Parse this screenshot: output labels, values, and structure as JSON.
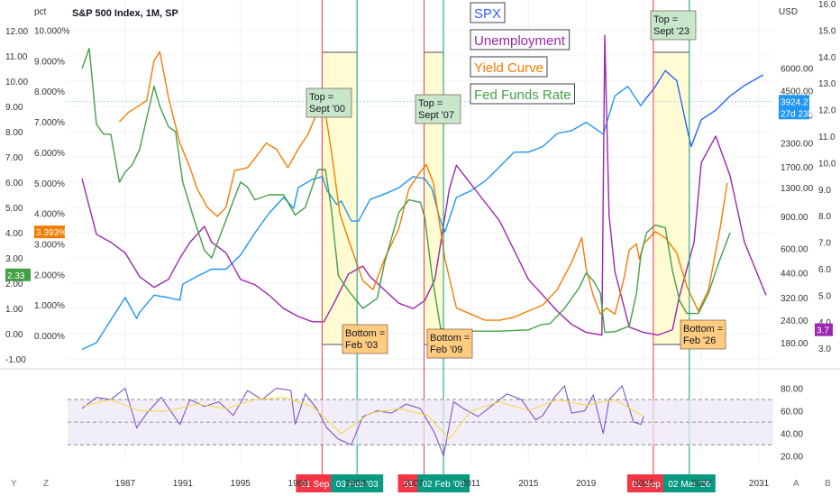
{
  "title": "S&P 500 Index, 1M, SP",
  "left_unit": "pct",
  "right_unit": "USD",
  "corner_left": [
    "Y",
    "Z"
  ],
  "corner_right": [
    "A",
    "B"
  ],
  "chart_data": [
    {
      "type": "line",
      "name": "main",
      "x_ticks": [
        "1987",
        "1991",
        "1995",
        "1999",
        "2003",
        "2007",
        "2011",
        "2015",
        "2019",
        "2023",
        "2027",
        "2031"
      ],
      "xlim": [
        1983,
        2032
      ],
      "left_pct_axis": {
        "ticks": [
          "10.000%",
          "9.000%",
          "8.000%",
          "7.000%",
          "6.000%",
          "5.000%",
          "4.000%",
          "3.000%",
          "2.000%",
          "1.000%",
          "0.000%"
        ],
        "range": [
          0,
          10
        ]
      },
      "left_ff_axis": {
        "ticks": [
          "12.00",
          "11.00",
          "10.00",
          "9.00",
          "8.00",
          "7.00",
          "6.00",
          "5.00",
          "4.00",
          "3.00",
          "2.00",
          "1.00",
          "0.00",
          "-1.00"
        ],
        "range": [
          -1,
          12
        ]
      },
      "right_spx_axis": {
        "ticks": [
          "6000.00",
          "4500.00",
          "3300.00",
          "2300.00",
          "1700.00",
          "1300.00",
          "900.00",
          "600.00",
          "440.00",
          "320.00",
          "240.00",
          "180.00"
        ],
        "scale": "log"
      },
      "right_unemp_axis": {
        "ticks": [
          "16.0",
          "15.0",
          "14.0",
          "13.0",
          "12.0",
          "11.0",
          "10.0",
          "9.0",
          "8.0",
          "7.0",
          "6.0",
          "5.0",
          "4.0",
          "3.0"
        ],
        "range": [
          3,
          16
        ]
      },
      "legend": [
        {
          "name": "SPX",
          "color": "#2962ff"
        },
        {
          "name": "Unemployment",
          "color": "#9c27b0"
        },
        {
          "name": "Yield Curve",
          "color": "#f57c00"
        },
        {
          "name": "Fed Funds Rate",
          "color": "#43a047"
        }
      ],
      "series": [
        {
          "name": "SPX",
          "color": "#2196f3",
          "x": [
            1984,
            1985,
            1986,
            1987,
            1987.8,
            1988,
            1989,
            1990,
            1990.8,
            1991,
            1992,
            1993,
            1994,
            1995,
            1996,
            1997,
            1998,
            1998.7,
            1999,
            2000,
            2000.7,
            2001,
            2001.7,
            2002,
            2002.7,
            2003.2,
            2004,
            2005,
            2006,
            2007,
            2007.8,
            2008.3,
            2008.8,
            2009.2,
            2010,
            2011,
            2012,
            2013,
            2014,
            2015,
            2016,
            2017,
            2018,
            2019,
            2020.2,
            2021,
            2021.9,
            2022.8,
            2023
          ],
          "y": [
            165,
            180,
            240,
            320,
            245,
            265,
            330,
            320,
            310,
            380,
            420,
            460,
            460,
            550,
            730,
            940,
            1150,
            1000,
            1300,
            1450,
            1500,
            1260,
            1050,
            1100,
            850,
            850,
            1120,
            1200,
            1300,
            1500,
            1460,
            1280,
            900,
            740,
            1150,
            1250,
            1420,
            1700,
            2050,
            2050,
            2200,
            2600,
            2700,
            3000,
            2580,
            4200,
            4750,
            3700,
            3925
          ]
        },
        {
          "name": "SPX projection",
          "color": "#2962ff",
          "x": [
            2023,
            2023.7,
            2024.5,
            2025.3,
            2026.0,
            2026.3,
            2027,
            2028,
            2029,
            2030,
            2031.3
          ],
          "y": [
            3925,
            4600,
            5800,
            5100,
            2800,
            2200,
            3100,
            3500,
            4200,
            4800,
            5500
          ]
        },
        {
          "name": "Unemployment",
          "color": "#9c27b0",
          "x": [
            1984,
            1985,
            1986,
            1987,
            1988,
            1989,
            1990,
            1990.8,
            1991.5,
            1992.5,
            1993,
            1994,
            1995,
            1996,
            1997,
            1998,
            1999,
            2000,
            2000.8,
            2001.5,
            2002.5,
            2003.5,
            2004,
            2005,
            2006,
            2007,
            2007.8,
            2008.5,
            2009.5,
            2010,
            2011,
            2012,
            2013,
            2014,
            2015,
            2016,
            2017,
            2018,
            2019,
            2020.1,
            2020.3,
            2020.6,
            2021,
            2022,
            2023,
            2024,
            2025,
            2025.5,
            2026.5,
            2027,
            2028,
            2029,
            2030,
            2031.5
          ],
          "y": [
            9.4,
            7.3,
            7.0,
            6.6,
            5.7,
            5.3,
            5.6,
            6.4,
            7.0,
            7.6,
            7.0,
            6.6,
            5.6,
            5.4,
            5.0,
            4.5,
            4.2,
            4.0,
            4.0,
            4.7,
            5.8,
            6.1,
            5.7,
            5.2,
            4.7,
            4.5,
            4.8,
            5.6,
            9.0,
            9.9,
            9.2,
            8.5,
            7.8,
            6.7,
            5.6,
            5.0,
            4.4,
            3.9,
            3.6,
            3.5,
            14.8,
            8.0,
            5.9,
            3.8,
            3.6,
            3.5,
            3.7,
            5.0,
            7.0,
            10.0,
            11.0,
            9.5,
            7.0,
            5.0
          ]
        },
        {
          "name": "Yield Curve",
          "color": "#f57c00",
          "x": [
            1986.6,
            1987.2,
            1988.5,
            1989,
            1989.4,
            1990,
            1990.8,
            1991.5,
            1992,
            1992.7,
            1993.4,
            1994,
            1994.6,
            1995.5,
            1996,
            1996.8,
            1997.5,
            1998.3,
            1999,
            1999.7,
            2000.5,
            2000.8,
            2001.3,
            2001.9,
            2002.6,
            2003.5,
            2004.2,
            2005,
            2006,
            2006.7,
            2007.4,
            2007.9,
            2008.4,
            2009.2,
            2010,
            2011,
            2012,
            2013,
            2014,
            2015,
            2016,
            2017,
            2018,
            2018.7,
            2019,
            2019.5,
            2020,
            2020.4,
            2021,
            2021.6,
            2022,
            2022.5,
            2022.7,
            2023,
            2023.8,
            2024.5,
            2025.3,
            2026,
            2026.8,
            2027.5,
            2028.3,
            2028.8
          ],
          "y": [
            7.0,
            7.3,
            7.7,
            9.0,
            9.3,
            7.8,
            6.3,
            5.5,
            4.8,
            4.2,
            3.9,
            4.2,
            5.4,
            5.5,
            5.8,
            6.3,
            6.1,
            5.5,
            6.1,
            6.6,
            7.5,
            7.6,
            6.1,
            4.0,
            3.0,
            1.8,
            1.5,
            2.5,
            3.5,
            4.8,
            5.3,
            5.6,
            5.0,
            2.5,
            0.9,
            0.7,
            0.5,
            0.5,
            0.6,
            0.8,
            1.0,
            1.5,
            2.4,
            3.2,
            2.2,
            1.3,
            0.7,
            0.9,
            0.7,
            1.8,
            2.8,
            3.0,
            2.5,
            3.0,
            3.4,
            3.2,
            2.7,
            1.6,
            0.8,
            1.5,
            3.5,
            5.0
          ]
        },
        {
          "name": "Fed Funds Rate",
          "color": "#43a047",
          "x": [
            1984,
            1984.5,
            1985,
            1985.5,
            1986,
            1986.6,
            1987,
            1987.5,
            1988,
            1989,
            1989.4,
            1990,
            1990.5,
            1991,
            1991.8,
            1992.5,
            1993,
            1994,
            1995,
            1995.5,
            1996,
            1997,
            1998,
            1998.8,
            1999.5,
            2000.4,
            2000.9,
            2001.3,
            2001.8,
            2002.5,
            2003.5,
            2004.5,
            2005,
            2006,
            2006.7,
            2007.5,
            2007.8,
            2008.3,
            2008.9,
            2009.5,
            2011,
            2013,
            2015,
            2015.9,
            2016.5,
            2017.5,
            2018.5,
            2019,
            2019.5,
            2020,
            2020.3,
            2021,
            2022,
            2022.5,
            2022.8,
            2023.2,
            2023.8,
            2024.5,
            2025,
            2025.5,
            2026,
            2026.8,
            2027.5,
            2028.2,
            2029
          ],
          "y": [
            10.5,
            11.3,
            8.3,
            7.9,
            7.9,
            6.0,
            6.4,
            6.7,
            7.3,
            9.8,
            9.0,
            8.2,
            8.0,
            6.0,
            4.5,
            3.3,
            3.0,
            4.5,
            6.0,
            5.8,
            5.3,
            5.5,
            5.5,
            4.7,
            5.0,
            6.5,
            6.5,
            5.0,
            2.3,
            1.7,
            1.0,
            1.4,
            2.8,
            4.8,
            5.3,
            5.2,
            4.6,
            2.3,
            0.2,
            0.12,
            0.1,
            0.1,
            0.15,
            0.36,
            0.4,
            1.0,
            1.8,
            2.4,
            2.1,
            1.6,
            0.05,
            0.08,
            0.3,
            1.6,
            3.1,
            4.0,
            4.3,
            4.2,
            2.5,
            1.3,
            0.8,
            0.8,
            1.6,
            2.8,
            4.0
          ]
        }
      ],
      "markers": [
        {
          "label": "01 Sep '00",
          "x": 2000.67,
          "color": "#f23645"
        },
        {
          "label": "03 Feb '03",
          "x": 2003.1,
          "color": "#089981"
        },
        {
          "label": "01 Oct '07",
          "x": 2007.75,
          "color": "#f23645"
        },
        {
          "label": "02 Feb '09",
          "x": 2009.1,
          "color": "#089981"
        },
        {
          "label": "01 Sep '23",
          "x": 2023.67,
          "color": "#f23645"
        },
        {
          "label": "02 Mar '26",
          "x": 2026.17,
          "color": "#089981"
        }
      ],
      "annotations": [
        {
          "text": [
            "Top =",
            "Sept '00"
          ],
          "kind": "top"
        },
        {
          "text": [
            "Bottom =",
            "Feb '03"
          ],
          "kind": "bottom"
        },
        {
          "text": [
            "Top =",
            "Sept '07"
          ],
          "kind": "top"
        },
        {
          "text": [
            "Bottom =",
            "Feb '09"
          ],
          "kind": "bottom"
        },
        {
          "text": [
            "Top =",
            "Sept '23"
          ],
          "kind": "top"
        },
        {
          "text": [
            "Bottom =",
            "Feb '26"
          ],
          "kind": "bottom"
        }
      ],
      "value_tags": [
        {
          "text": "3.393%",
          "color": "#f57c00",
          "axis": "left",
          "value": 3.393
        },
        {
          "text": "2.33",
          "color": "#43a047",
          "axis": "left",
          "value": 2.33
        },
        {
          "text": "3924.27",
          "color": "#2196f3",
          "axis": "right",
          "value": 3924.27
        },
        {
          "text": "27d 23h",
          "color": "#2196f3",
          "axis": "right"
        },
        {
          "text": "3.7",
          "color": "#9c27b0",
          "axis": "right",
          "value": 3.7
        }
      ]
    },
    {
      "type": "line",
      "name": "RSI",
      "y_ticks": [
        "80.00",
        "60.00",
        "40.00",
        "20.00"
      ],
      "ylim": [
        15,
        90
      ],
      "band": [
        30,
        70
      ],
      "series": [
        {
          "name": "RSI",
          "color": "#7e57c2",
          "x": [
            1984,
            1985,
            1986,
            1987,
            1987.8,
            1988.5,
            1989.5,
            1990.8,
            1991.5,
            1992.5,
            1993.5,
            1994.5,
            1995.5,
            1996.5,
            1997.5,
            1998.5,
            1998.8,
            1999.5,
            2000.3,
            2001,
            2001.8,
            2002.7,
            2003.5,
            2004.5,
            2005.5,
            2006.5,
            2007.5,
            2008.5,
            2009.1,
            2009.8,
            2010.5,
            2011.5,
            2012.5,
            2013.5,
            2014.5,
            2015.5,
            2016,
            2016.8,
            2017.5,
            2018,
            2018.9,
            2019.5,
            2020.2,
            2020.6,
            2021.5,
            2022.3,
            2022.8,
            2023
          ],
          "y": [
            62,
            72,
            70,
            80,
            45,
            58,
            72,
            48,
            70,
            64,
            68,
            56,
            78,
            70,
            80,
            78,
            48,
            75,
            62,
            45,
            35,
            30,
            55,
            60,
            58,
            66,
            62,
            40,
            20,
            68,
            62,
            55,
            65,
            75,
            70,
            52,
            56,
            72,
            82,
            58,
            60,
            74,
            40,
            70,
            82,
            50,
            48,
            55
          ]
        },
        {
          "name": "RSI MA",
          "color": "#f9d74a",
          "x": [
            1984,
            1986,
            1988,
            1990,
            1992,
            1994,
            1996,
            1998,
            2000,
            2002,
            2004,
            2006,
            2008,
            2009.5,
            2011,
            2013,
            2015,
            2017,
            2019,
            2021,
            2023
          ],
          "y": [
            64,
            70,
            60,
            60,
            66,
            62,
            70,
            72,
            64,
            40,
            58,
            62,
            56,
            35,
            60,
            68,
            60,
            70,
            65,
            70,
            55
          ]
        }
      ]
    }
  ]
}
